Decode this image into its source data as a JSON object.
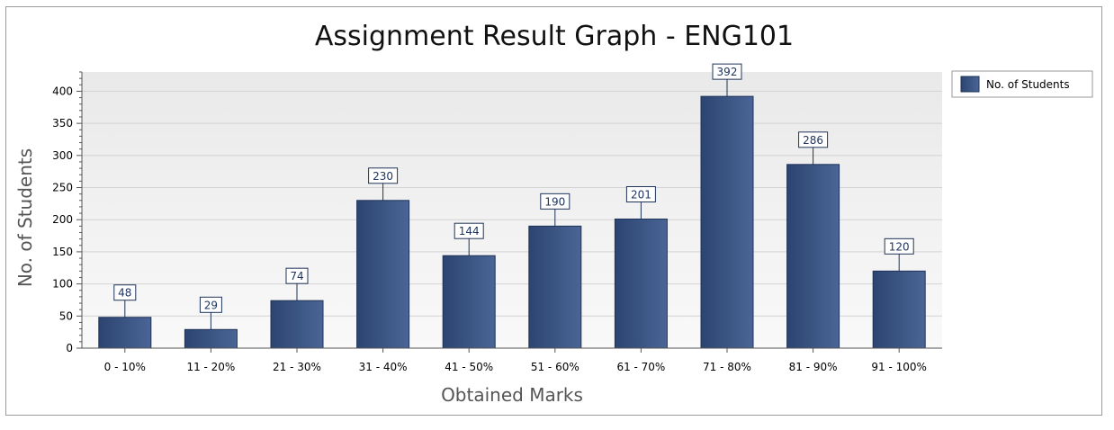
{
  "chart_data": {
    "type": "bar",
    "title": "Assignment Result Graph - ENG101",
    "xlabel": "Obtained Marks",
    "ylabel": "No. of Students",
    "categories": [
      "0 - 10%",
      "11 - 20%",
      "21 - 30%",
      "31 - 40%",
      "41 - 50%",
      "51 - 60%",
      "61 - 70%",
      "71 - 80%",
      "81 - 90%",
      "91 - 100%"
    ],
    "series": [
      {
        "name": "No. of Students",
        "values": [
          48,
          29,
          74,
          230,
          144,
          190,
          201,
          392,
          286,
          120
        ]
      }
    ],
    "ylim": [
      0,
      430
    ],
    "yticks": [
      0,
      50,
      100,
      150,
      200,
      250,
      300,
      350,
      400
    ],
    "grid": true,
    "legend": "top-right",
    "data_labels": true,
    "colors": {
      "bar_dark": "#2c4470",
      "bar_light": "#4a6596",
      "bar_border": "#1f3358",
      "plot_bg_top": "#e9e9e9",
      "plot_bg_bottom": "#f9f9f9",
      "grid": "#d3d3d3",
      "axis": "#555555"
    }
  }
}
